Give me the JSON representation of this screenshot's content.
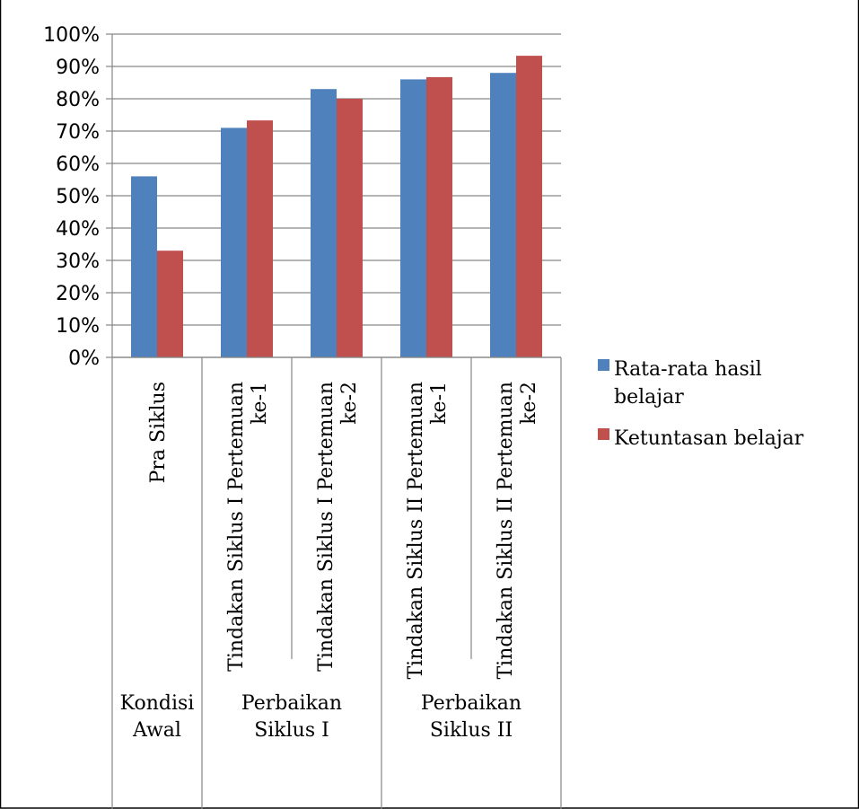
{
  "chart_data": {
    "type": "bar",
    "title": "",
    "xlabel": "",
    "ylabel": "",
    "ylim": [
      0,
      100
    ],
    "y_ticks": [
      "0%",
      "10%",
      "20%",
      "30%",
      "40%",
      "50%",
      "60%",
      "70%",
      "80%",
      "90%",
      "100%"
    ],
    "grid": true,
    "legend_position": "right",
    "categories": [
      [
        "Pra Siklus"
      ],
      [
        "Tindakan Siklus I Pertemuan",
        "ke-1"
      ],
      [
        "Tindakan Siklus I Pertemuan",
        "ke-2"
      ],
      [
        "Tindakan Siklus II Pertemuan",
        "ke-1"
      ],
      [
        "Tindakan Siklus II Pertemuan",
        "ke-2"
      ]
    ],
    "groups": [
      {
        "label": [
          "Kondisi",
          "Awal"
        ],
        "span": 1
      },
      {
        "label": [
          "Perbaikan",
          "Siklus I"
        ],
        "span": 2
      },
      {
        "label": [
          "Perbaikan",
          "Siklus II"
        ],
        "span": 2
      }
    ],
    "series": [
      {
        "name": "Rata-rata hasil belajar",
        "legend_lines": [
          "Rata-rata hasil",
          "belajar"
        ],
        "color": "#4f81bd",
        "values": [
          56,
          71,
          83,
          86,
          88
        ]
      },
      {
        "name": "Ketuntasan belajar",
        "legend_lines": [
          "Ketuntasan belajar"
        ],
        "color": "#c0504d",
        "values": [
          33,
          73.3,
          80,
          86.7,
          93.3
        ]
      }
    ]
  }
}
